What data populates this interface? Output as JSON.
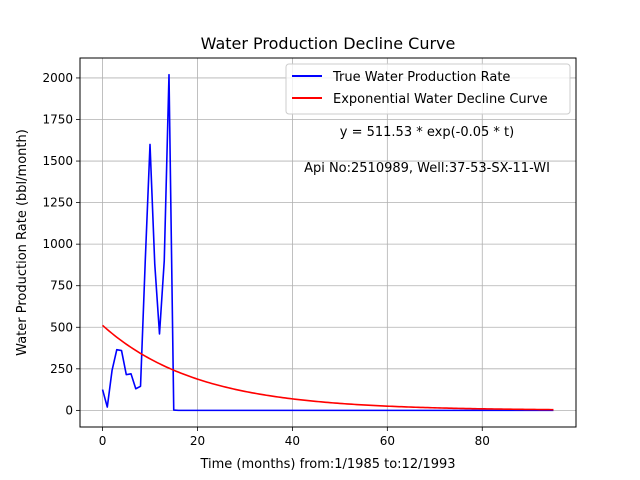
{
  "chart_data": {
    "type": "line",
    "title": "Water Production Decline Curve",
    "xlabel": "Time (months) from:1/1985 to:12/1993",
    "ylabel": "Water Production Rate (bbl/month)",
    "xlim": [
      -4.75,
      99.75
    ],
    "ylim": [
      -100,
      2120
    ],
    "xticks": [
      0,
      20,
      40,
      60,
      80
    ],
    "yticks": [
      0,
      250,
      500,
      750,
      1000,
      1250,
      1500,
      1750,
      2000
    ],
    "grid": true,
    "legend_position": "top-right",
    "series": [
      {
        "name": "True Water Production Rate",
        "color": "#0000ff",
        "x": [
          0,
          1,
          2,
          3,
          4,
          5,
          6,
          7,
          8,
          9,
          10,
          11,
          12,
          13,
          14,
          15,
          16,
          20,
          30,
          40,
          50,
          60,
          70,
          80,
          90,
          95
        ],
        "y": [
          125,
          20,
          240,
          365,
          360,
          215,
          220,
          130,
          145,
          900,
          1600,
          880,
          460,
          900,
          2020,
          2,
          0,
          0,
          0,
          0,
          0,
          0,
          0,
          0,
          0,
          0
        ]
      },
      {
        "name": "Exponential Water Decline Curve",
        "color": "#ff0000",
        "model": {
          "a": 511.53,
          "b": -0.05
        },
        "x_start": 0,
        "x_end": 95
      }
    ],
    "annotations": [
      "y = 511.53 * exp(-0.05 * t)",
      "Api No:2510989, Well:37-53-SX-11-WI"
    ]
  }
}
